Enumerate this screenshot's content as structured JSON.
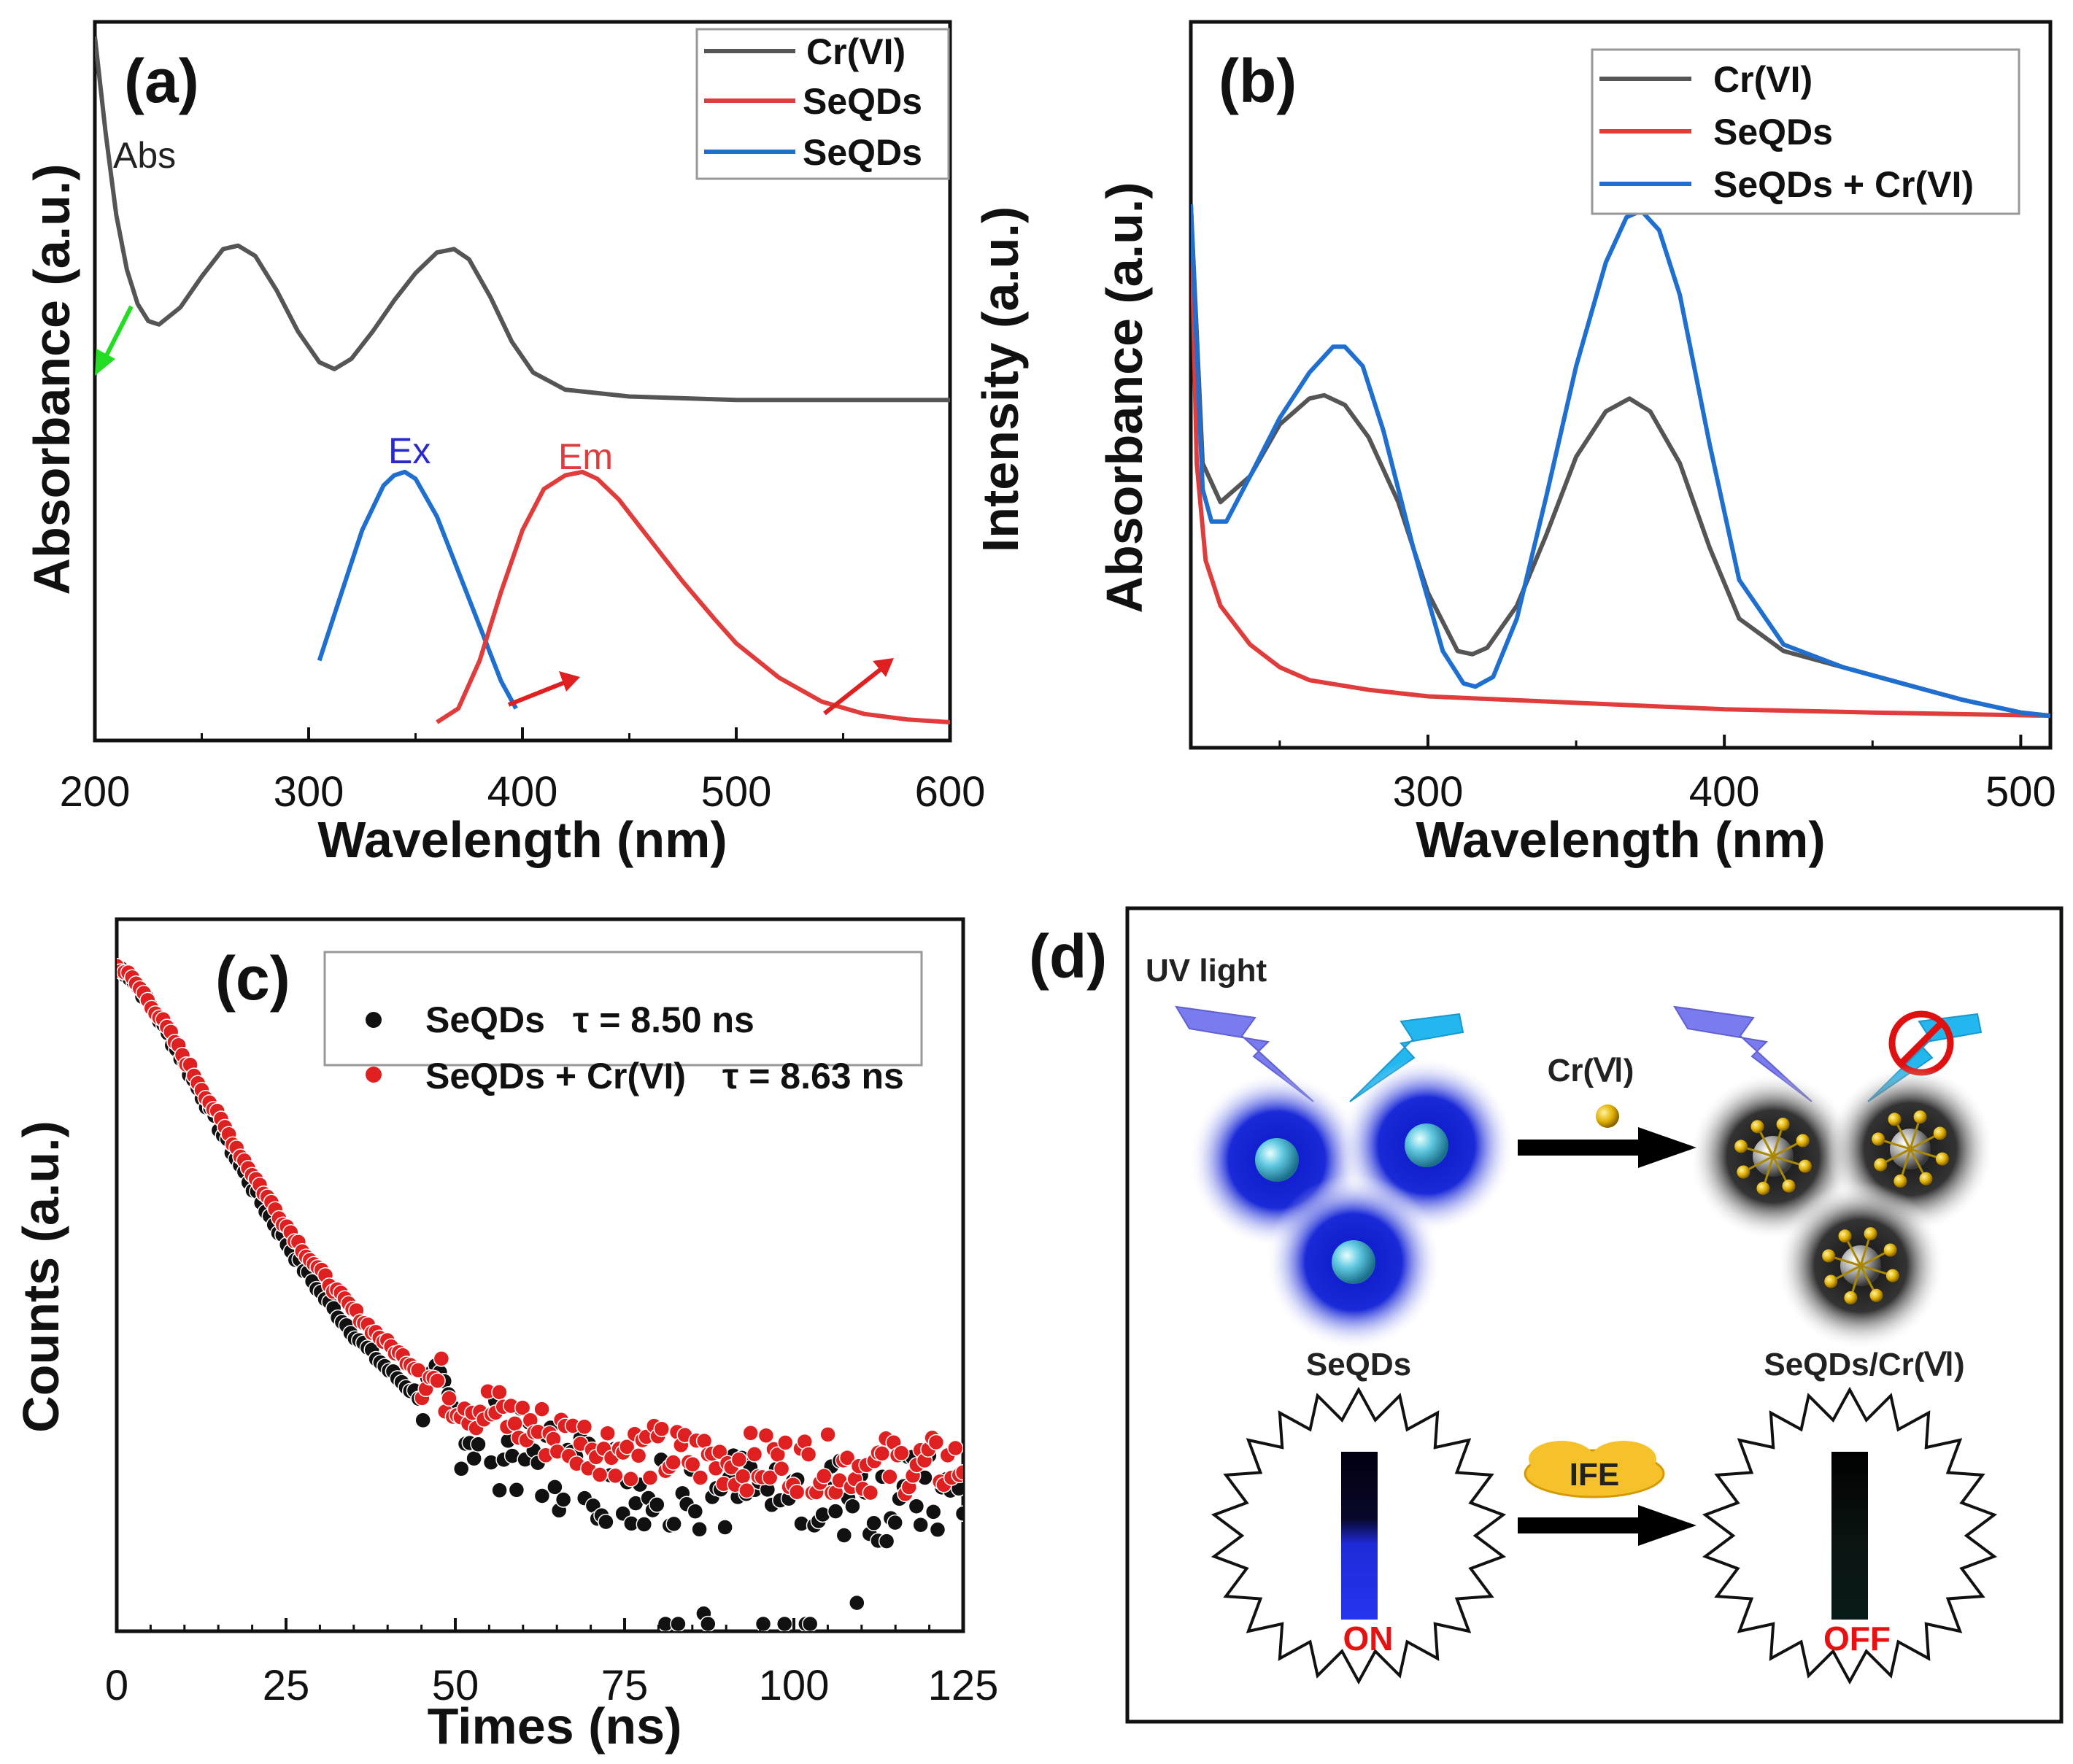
{
  "chart_data": [
    {
      "panel": "(a)",
      "type": "line",
      "xlabel": "Wavelength (nm)",
      "ylabel": "Absorbance (a.u.)",
      "ylabel_right": "Intensity (a.u.)",
      "xlim": [
        200,
        600
      ],
      "xticks": [
        "200",
        "300",
        "400",
        "500",
        "600"
      ],
      "legend": [
        "Cr(VI)",
        "SeQDs",
        "SeQDs"
      ],
      "annotations": {
        "abs": "Abs",
        "ex": "Ex",
        "em": "Em"
      },
      "series": [
        {
          "name": "Cr(VI) Abs",
          "color": "#555555",
          "x": [
            200,
            205,
            210,
            215,
            220,
            225,
            230,
            240,
            250,
            260,
            267,
            275,
            285,
            295,
            305,
            312,
            320,
            330,
            340,
            350,
            360,
            368,
            375,
            385,
            395,
            405,
            420,
            450,
            500,
            550,
            600
          ],
          "y": [
            1.0,
            0.86,
            0.74,
            0.66,
            0.61,
            0.585,
            0.58,
            0.605,
            0.65,
            0.69,
            0.695,
            0.68,
            0.63,
            0.57,
            0.525,
            0.515,
            0.53,
            0.57,
            0.615,
            0.655,
            0.685,
            0.69,
            0.675,
            0.62,
            0.555,
            0.51,
            0.485,
            0.475,
            0.47,
            0.47,
            0.47
          ]
        },
        {
          "name": "SeQDs Ex",
          "color": "#1f6fd1",
          "x": [
            305,
            315,
            325,
            335,
            340,
            345,
            350,
            360,
            370,
            380,
            390,
            397
          ],
          "y": [
            0.09,
            0.185,
            0.28,
            0.345,
            0.36,
            0.365,
            0.355,
            0.3,
            0.22,
            0.14,
            0.06,
            0.02
          ]
        },
        {
          "name": "SeQDs Em",
          "color": "#e03c3c",
          "x": [
            360,
            370,
            380,
            390,
            400,
            410,
            420,
            428,
            435,
            445,
            455,
            465,
            475,
            490,
            500,
            520,
            540,
            560,
            580,
            600
          ],
          "y": [
            0.0,
            0.02,
            0.09,
            0.19,
            0.28,
            0.34,
            0.36,
            0.365,
            0.355,
            0.325,
            0.285,
            0.245,
            0.205,
            0.15,
            0.115,
            0.065,
            0.03,
            0.012,
            0.004,
            0.0
          ]
        }
      ]
    },
    {
      "panel": "(b)",
      "type": "line",
      "xlabel": "Wavelength (nm)",
      "ylabel": "Absorbance (a.u.)",
      "xlim": [
        220,
        510
      ],
      "xticks": [
        "300",
        "400",
        "500"
      ],
      "legend": [
        "Cr(VI)",
        "SeQDs",
        "SeQDs + Cr(VI)"
      ],
      "series": [
        {
          "name": "Cr(VI)",
          "color": "#555555",
          "x": [
            220,
            224,
            230,
            240,
            250,
            260,
            265,
            272,
            280,
            290,
            300,
            310,
            315,
            320,
            330,
            340,
            350,
            360,
            368,
            375,
            385,
            395,
            405,
            420,
            440,
            460,
            480,
            500,
            510
          ],
          "y": [
            0.8,
            0.4,
            0.34,
            0.38,
            0.46,
            0.5,
            0.505,
            0.49,
            0.44,
            0.34,
            0.2,
            0.11,
            0.105,
            0.115,
            0.18,
            0.29,
            0.41,
            0.48,
            0.5,
            0.48,
            0.4,
            0.27,
            0.16,
            0.11,
            0.085,
            0.06,
            0.035,
            0.015,
            0.01
          ]
        },
        {
          "name": "SeQDs",
          "color": "#e03c3c",
          "x": [
            220,
            222,
            225,
            230,
            240,
            250,
            260,
            280,
            300,
            350,
            400,
            450,
            510
          ],
          "y": [
            0.8,
            0.4,
            0.25,
            0.18,
            0.12,
            0.085,
            0.065,
            0.05,
            0.04,
            0.03,
            0.02,
            0.015,
            0.01
          ]
        },
        {
          "name": "SeQDs + Cr(VI)",
          "color": "#1f6fd1",
          "x": [
            220,
            224,
            227,
            232,
            240,
            250,
            260,
            268,
            272,
            278,
            285,
            295,
            305,
            312,
            316,
            322,
            330,
            340,
            350,
            360,
            367,
            372,
            378,
            385,
            395,
            405,
            420,
            440,
            460,
            480,
            500,
            510
          ],
          "y": [
            0.8,
            0.36,
            0.31,
            0.31,
            0.38,
            0.47,
            0.54,
            0.58,
            0.58,
            0.55,
            0.45,
            0.27,
            0.11,
            0.06,
            0.055,
            0.07,
            0.16,
            0.35,
            0.55,
            0.71,
            0.78,
            0.79,
            0.76,
            0.66,
            0.43,
            0.22,
            0.12,
            0.085,
            0.06,
            0.035,
            0.015,
            0.01
          ]
        }
      ]
    },
    {
      "panel": "(c)",
      "type": "scatter",
      "xlabel": "Times (ns)",
      "ylabel": "Counts (a.u.)",
      "xlim": [
        0,
        125
      ],
      "xticks": [
        "0",
        "25",
        "50",
        "75",
        "100",
        "125"
      ],
      "legend": [
        "SeQDs",
        "SeQDs + Cr(VI)"
      ],
      "legend_tau": [
        "τ = 8.50 ns",
        "τ = 8.63 ns"
      ],
      "decay": {
        "start": 1.0,
        "plateau_SeQDs": 0.19,
        "plateau_SeQDs_CrVI": 0.24,
        "tau_shape_ns": 20
      },
      "series": [
        {
          "name": "SeQDs",
          "color": "#111111",
          "count": 200
        },
        {
          "name": "SeQDs + Cr(VI)",
          "color": "#e02020",
          "count": 220
        }
      ]
    }
  ],
  "schematic": {
    "panel": "(d)",
    "uv_label": "UV light",
    "reagent_label": "Cr(Ⅵ)",
    "left_label": "SeQDs",
    "right_label": "SeQDs/Cr(Ⅵ)",
    "ife_label": "IFE",
    "on_label": "ON",
    "off_label": "OFF"
  }
}
